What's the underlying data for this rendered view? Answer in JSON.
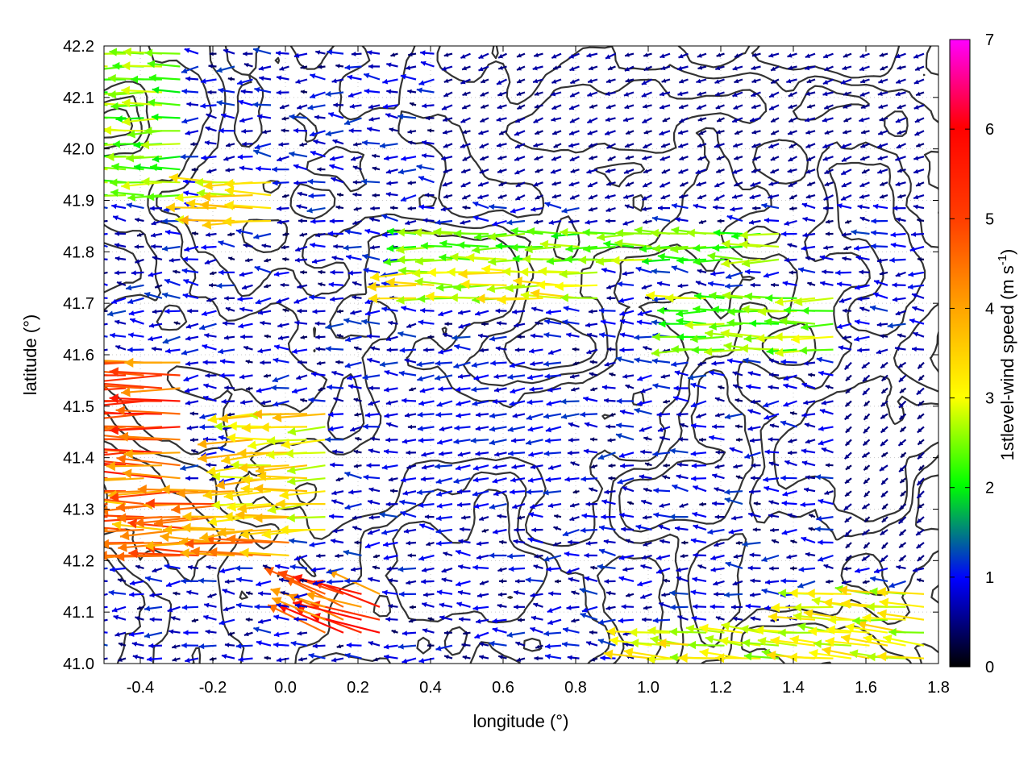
{
  "chart_data": {
    "type": "vector-field",
    "xlabel": "longitude (°)",
    "ylabel": "latitude (°)",
    "xlim": [
      -0.5,
      1.8
    ],
    "ylim": [
      41.0,
      42.2
    ],
    "x_ticks": [
      "-0.4",
      "-0.2",
      "0.0",
      "0.2",
      "0.4",
      "0.6",
      "0.8",
      "1.0",
      "1.2",
      "1.4",
      "1.6",
      "1.8"
    ],
    "x_tick_values": [
      -0.4,
      -0.2,
      0.0,
      0.2,
      0.4,
      0.6,
      0.8,
      1.0,
      1.2,
      1.4,
      1.6,
      1.8
    ],
    "y_ticks": [
      "41.0",
      "41.1",
      "41.2",
      "41.3",
      "41.4",
      "41.5",
      "41.6",
      "41.7",
      "41.8",
      "41.9",
      "42.0",
      "42.1",
      "42.2"
    ],
    "y_tick_values": [
      41.0,
      41.1,
      41.2,
      41.3,
      41.4,
      41.5,
      41.6,
      41.7,
      41.8,
      41.9,
      42.0,
      42.1,
      42.2
    ],
    "grid": true,
    "colorbar": {
      "label": "1stlevel-wind speed (m s",
      "label_sup": "-1",
      "label_end": ")",
      "range": [
        0,
        7
      ],
      "ticks": [
        "0",
        "1",
        "2",
        "3",
        "4",
        "5",
        "6",
        "7"
      ],
      "tick_values": [
        0,
        1,
        2,
        3,
        4,
        5,
        6,
        7
      ],
      "colors": [
        "#000000",
        "#0000ff",
        "#00ff00",
        "#ffff00",
        "#ff0000",
        "#ff00ff"
      ]
    },
    "wind_regions": [
      {
        "lon": [
          -0.5,
          -0.25
        ],
        "lat": [
          41.35,
          41.6
        ],
        "speed": 4.8,
        "dir_deg": 180
      },
      {
        "lon": [
          -0.5,
          0.05
        ],
        "lat": [
          41.2,
          41.35
        ],
        "speed": 4.3,
        "dir_deg": 180
      },
      {
        "lon": [
          -0.1,
          0.15
        ],
        "lat": [
          41.25,
          41.5
        ],
        "speed": 3.3,
        "dir_deg": 183
      },
      {
        "lon": [
          -0.2,
          0.0
        ],
        "lat": [
          41.85,
          41.95
        ],
        "speed": 3.3,
        "dir_deg": 180
      },
      {
        "lon": [
          0.35,
          0.9
        ],
        "lat": [
          41.7,
          41.8
        ],
        "speed": 2.9,
        "dir_deg": 180
      },
      {
        "lon": [
          0.35,
          1.4
        ],
        "lat": [
          41.78,
          41.84
        ],
        "speed": 2.4,
        "dir_deg": 180
      },
      {
        "lon": [
          1.45,
          1.8
        ],
        "lat": [
          41.0,
          41.15
        ],
        "speed": 3.0,
        "dir_deg": 175
      },
      {
        "lon": [
          1.0,
          1.45
        ],
        "lat": [
          41.0,
          41.08
        ],
        "speed": 2.9,
        "dir_deg": 175
      },
      {
        "lon": [
          0.1,
          0.3
        ],
        "lat": [
          41.05,
          41.15
        ],
        "speed": 5.0,
        "dir_deg": 160
      },
      {
        "lon": [
          1.1,
          1.55
        ],
        "lat": [
          41.6,
          41.72
        ],
        "speed": 2.5,
        "dir_deg": 180
      },
      {
        "lon": [
          -0.5,
          -0.25
        ],
        "lat": [
          41.9,
          42.2
        ],
        "speed": 2.4,
        "dir_deg": 180
      },
      {
        "lon": [
          0.45,
          1.8
        ],
        "lat": [
          41.9,
          42.2
        ],
        "speed": 0.6,
        "dir_deg": 200
      },
      {
        "lon": [
          0.4,
          0.8
        ],
        "lat": [
          41.3,
          41.6
        ],
        "speed": 1.0,
        "dir_deg": 190
      },
      {
        "lon": [
          1.55,
          1.8
        ],
        "lat": [
          41.2,
          41.6
        ],
        "speed": 0.5,
        "dir_deg": 220
      }
    ]
  }
}
